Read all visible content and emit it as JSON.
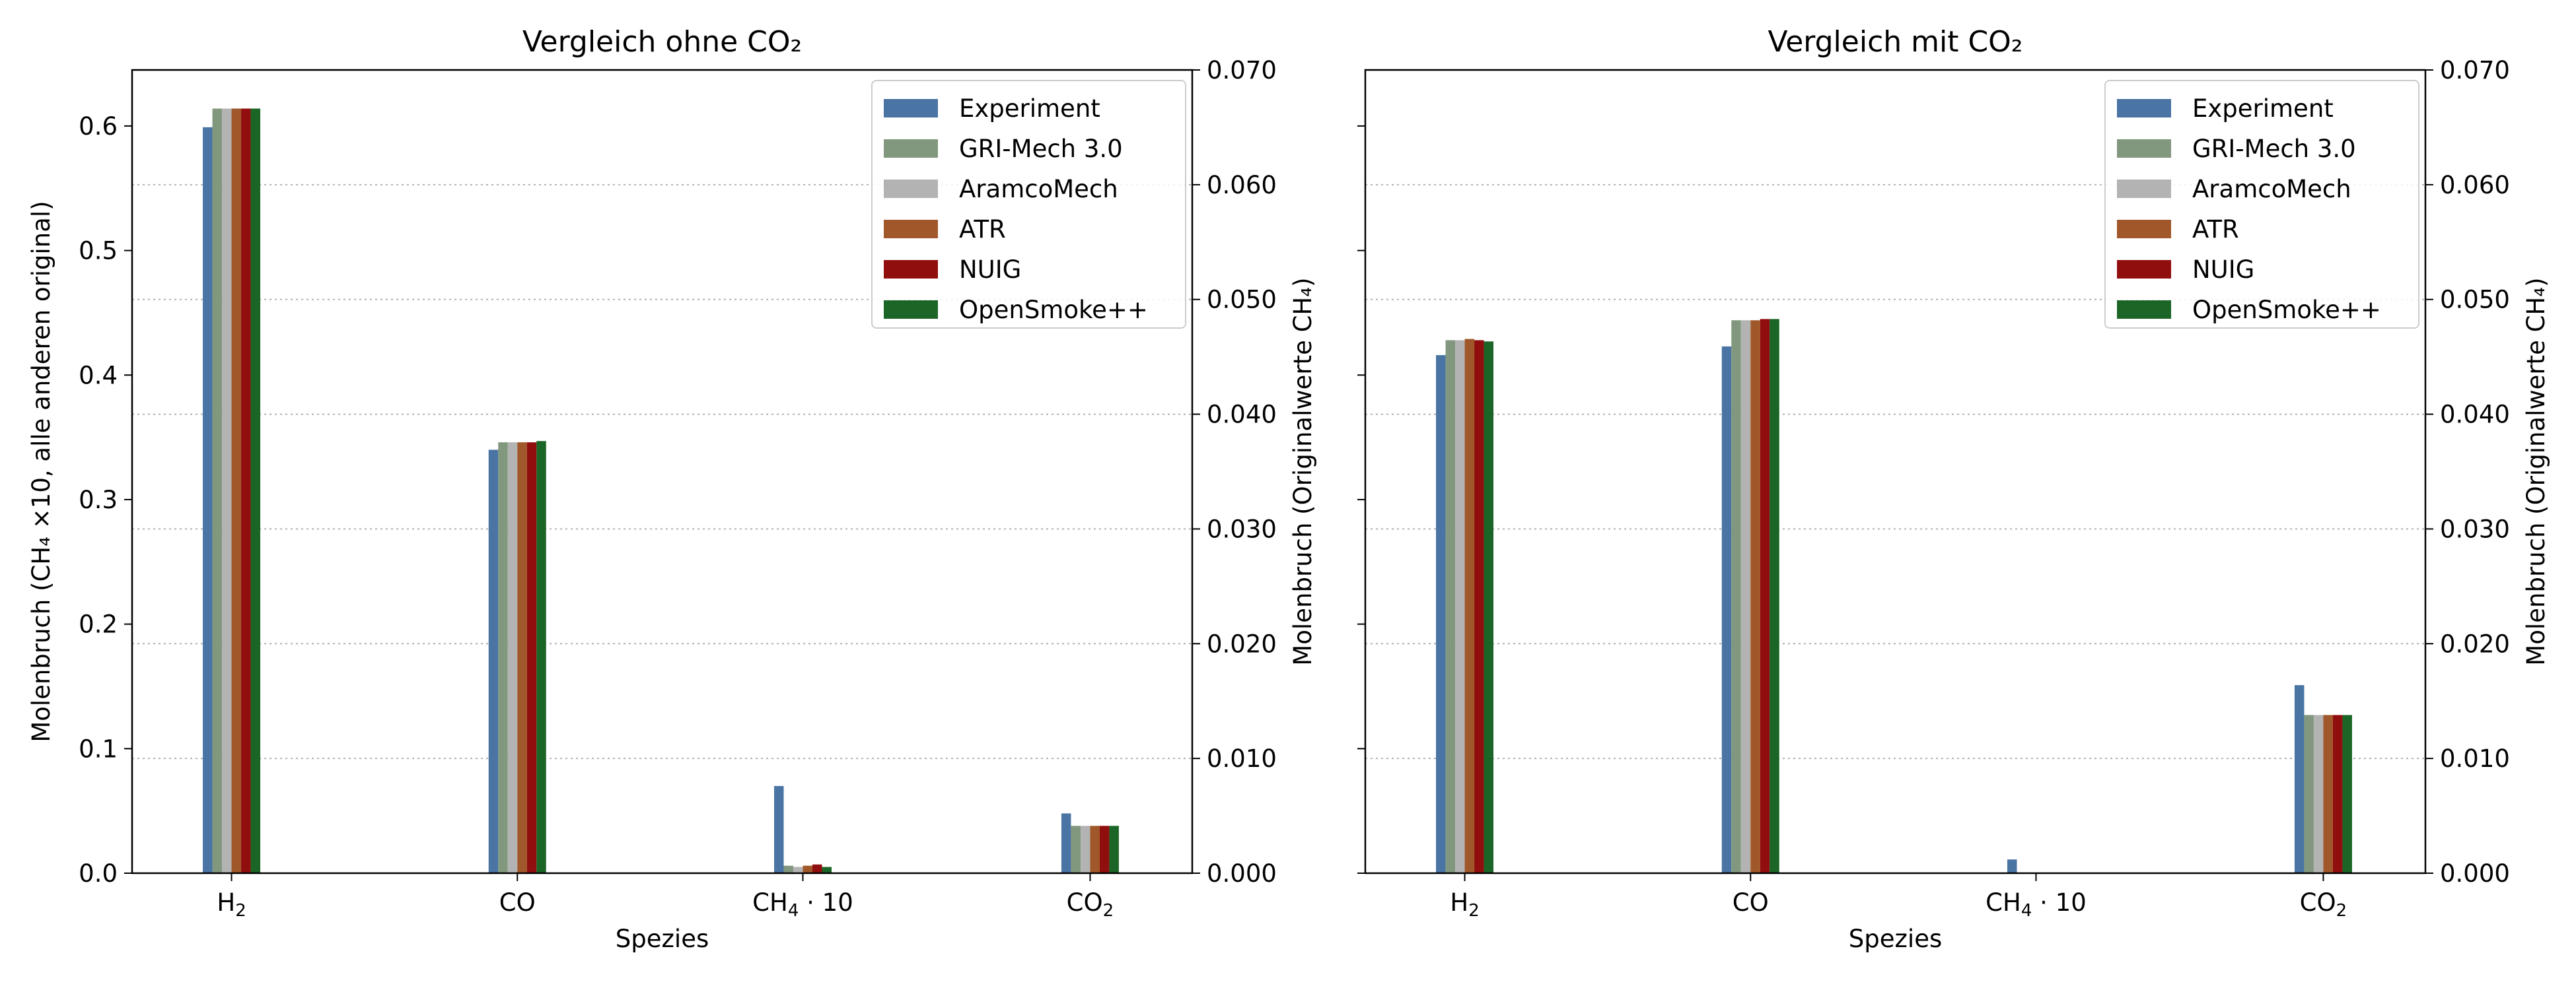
{
  "colors": {
    "Experiment": "#4a74a4",
    "GRI-Mech 3.0": "#82987e",
    "AramcoMech": "#b3b3b3",
    "ATR": "#a0582a",
    "NUIG": "#910e0e",
    "OpenSmoke++": "#1b6526",
    "grid": "#b0b0b0"
  },
  "chart_data": [
    {
      "type": "bar",
      "title": "Vergleich ohne CO₂",
      "xlabel": "Spezies",
      "ylabel": "Molenbruch (CH₄ ×10, alle anderen original)",
      "ylabel_right": "Molenbruch (Originalwerte CH₄)",
      "categories": [
        {
          "base": "H",
          "sub": "2",
          "suffix": ""
        },
        {
          "base": "CO",
          "sub": "",
          "suffix": ""
        },
        {
          "base": "CH",
          "sub": "4",
          "suffix": " · 10"
        },
        {
          "base": "CO",
          "sub": "2",
          "suffix": ""
        }
      ],
      "ylim": [
        0,
        0.645
      ],
      "yticks": [
        "0.0",
        "0.1",
        "0.2",
        "0.3",
        "0.4",
        "0.5",
        "0.6"
      ],
      "ylim_right": [
        0,
        0.07
      ],
      "yticks_right": [
        "0.000",
        "0.010",
        "0.020",
        "0.030",
        "0.040",
        "0.050",
        "0.060",
        "0.070"
      ],
      "grid": "y, dotted",
      "legend": "top-right",
      "series": [
        {
          "name": "Experiment",
          "values": [
            0.599,
            0.34,
            0.07,
            0.048
          ]
        },
        {
          "name": "GRI-Mech 3.0",
          "values": [
            0.614,
            0.346,
            0.006,
            0.038
          ]
        },
        {
          "name": "AramcoMech",
          "values": [
            0.614,
            0.346,
            0.005,
            0.038
          ]
        },
        {
          "name": "ATR",
          "values": [
            0.614,
            0.346,
            0.006,
            0.038
          ]
        },
        {
          "name": "NUIG",
          "values": [
            0.614,
            0.346,
            0.007,
            0.038
          ]
        },
        {
          "name": "OpenSmoke++",
          "values": [
            0.614,
            0.347,
            0.005,
            0.038
          ]
        }
      ]
    },
    {
      "type": "bar",
      "title": "Vergleich mit CO₂",
      "xlabel": "Spezies",
      "ylabel": "",
      "ylabel_right": "Molenbruch (Originalwerte CH₄)",
      "categories": [
        {
          "base": "H",
          "sub": "2",
          "suffix": ""
        },
        {
          "base": "CO",
          "sub": "",
          "suffix": ""
        },
        {
          "base": "CH",
          "sub": "4",
          "suffix": " · 10"
        },
        {
          "base": "CO",
          "sub": "2",
          "suffix": ""
        }
      ],
      "ylim": [
        0,
        0.645
      ],
      "yticks": [],
      "ylim_right": [
        0,
        0.07
      ],
      "yticks_right": [
        "0.000",
        "0.010",
        "0.020",
        "0.030",
        "0.040",
        "0.050",
        "0.060",
        "0.070"
      ],
      "grid": "y, dotted",
      "legend": "top-right",
      "series": [
        {
          "name": "Experiment",
          "values": [
            0.416,
            0.423,
            0.011,
            0.151
          ]
        },
        {
          "name": "GRI-Mech 3.0",
          "values": [
            0.428,
            0.444,
            0.0,
            0.127
          ]
        },
        {
          "name": "AramcoMech",
          "values": [
            0.428,
            0.444,
            0.0,
            0.127
          ]
        },
        {
          "name": "ATR",
          "values": [
            0.429,
            0.444,
            0.0,
            0.127
          ]
        },
        {
          "name": "NUIG",
          "values": [
            0.428,
            0.445,
            0.0,
            0.127
          ]
        },
        {
          "name": "OpenSmoke++",
          "values": [
            0.427,
            0.445,
            0.0,
            0.127
          ]
        }
      ]
    }
  ]
}
